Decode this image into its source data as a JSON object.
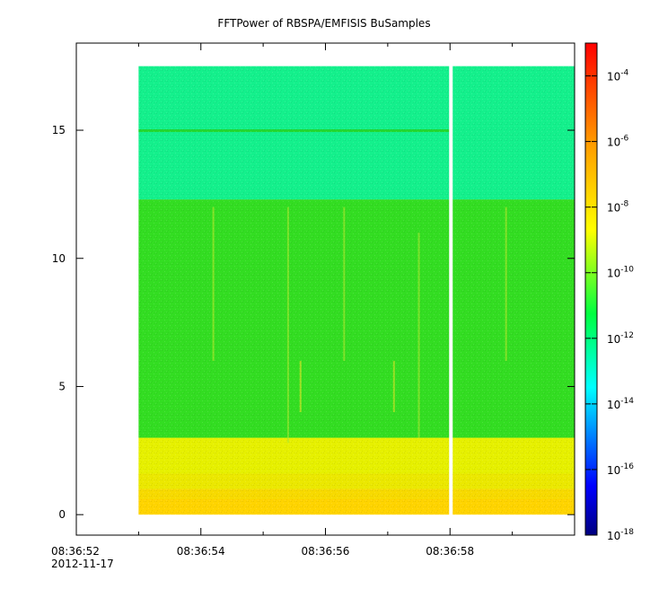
{
  "chart_data": {
    "type": "heatmap",
    "title": "FFTPower of RBSPA/EMFISIS  BuSamples",
    "xlabel": "",
    "ylabel": "",
    "x_ticks": [
      {
        "t": 0,
        "label": "08:36:52",
        "sublabel": "2012-11-17"
      },
      {
        "t": 2,
        "label": "08:36:54"
      },
      {
        "t": 4,
        "label": "08:36:56"
      },
      {
        "t": 6,
        "label": "08:36:58"
      }
    ],
    "x_minor_ticks": [
      1,
      3,
      5,
      7
    ],
    "xlim": [
      0,
      8.0
    ],
    "y_ticks": [
      0,
      5,
      10,
      15
    ],
    "ylim": [
      -0.8,
      18.4
    ],
    "data_extent": {
      "t_start": 1.0,
      "t_end": 8.0,
      "f_min": 0,
      "f_max": 17.5
    },
    "data_gap": {
      "t": 6.0
    },
    "colorbar": {
      "scale": "log",
      "range": [
        1e-18,
        0.001
      ],
      "ticks": [
        {
          "base": "10",
          "exp": "-4",
          "value": 0.0001
        },
        {
          "base": "10",
          "exp": "-6",
          "value": 1e-06
        },
        {
          "base": "10",
          "exp": "-8",
          "value": 1e-08
        },
        {
          "base": "10",
          "exp": "-10",
          "value": 1e-10
        },
        {
          "base": "10",
          "exp": "-12",
          "value": 1e-12
        },
        {
          "base": "10",
          "exp": "-14",
          "value": 1e-14
        },
        {
          "base": "10",
          "exp": "-16",
          "value": 1e-16
        },
        {
          "base": "10",
          "exp": "-18",
          "value": 1e-18
        }
      ]
    },
    "bands": [
      {
        "f_from": 0,
        "f_to": 1.0,
        "level_exp": -8.0,
        "color": "#ffd400"
      },
      {
        "f_from": 1.0,
        "f_to": 3.0,
        "level_exp": -8.8,
        "color": "#e6f000"
      },
      {
        "f_from": 3.0,
        "f_to": 12.3,
        "level_exp": -10.3,
        "color": "#33dd22"
      },
      {
        "f_from": 12.3,
        "f_to": 17.5,
        "level_exp": -11.6,
        "color": "#14f08c"
      }
    ],
    "line_feature": {
      "f": 15.0,
      "level_exp": -10.6,
      "color": "#22d830"
    },
    "bursts": [
      {
        "t": 2.2,
        "f_from": 6.0,
        "f_to": 12.0,
        "color": "#b4e82c"
      },
      {
        "t": 3.4,
        "f_from": 2.8,
        "f_to": 12.0,
        "color": "#a8e830"
      },
      {
        "t": 3.6,
        "f_from": 4.0,
        "f_to": 6.0,
        "color": "#e6e628"
      },
      {
        "t": 4.3,
        "f_from": 6.0,
        "f_to": 12.0,
        "color": "#aee82e"
      },
      {
        "t": 5.1,
        "f_from": 4.0,
        "f_to": 6.0,
        "color": "#dce62a"
      },
      {
        "t": 5.5,
        "f_from": 3.0,
        "f_to": 11.0,
        "color": "#a8e830"
      },
      {
        "t": 6.9,
        "f_from": 6.0,
        "f_to": 12.0,
        "color": "#b4e82c"
      }
    ]
  }
}
